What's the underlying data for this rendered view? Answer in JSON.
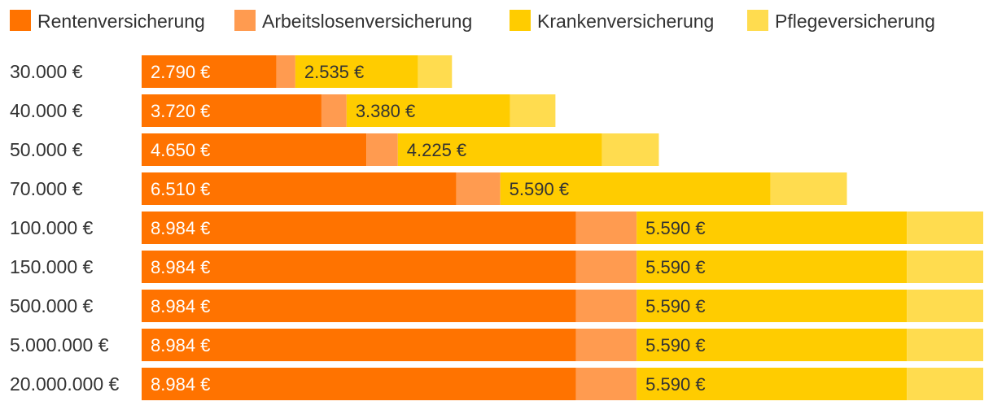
{
  "chart_data": {
    "type": "bar",
    "orientation": "horizontal",
    "stacked": true,
    "categories": [
      "30.000 €",
      "40.000 €",
      "50.000 €",
      "70.000 €",
      "100.000 €",
      "150.000 €",
      "500.000 €",
      "5.000.000 €",
      "20.000.000 €"
    ],
    "series": [
      {
        "name": "Rentenversicherung",
        "color": "#FF7300",
        "values": [
          2790,
          3720,
          4650,
          6510,
          8984,
          8984,
          8984,
          8984,
          8984
        ],
        "labels": [
          "2.790 €",
          "3.720 €",
          "4.650 €",
          "6.510 €",
          "8.984 €",
          "8.984 €",
          "8.984 €",
          "8.984 €",
          "8.984 €"
        ],
        "label_color": "#ffffff"
      },
      {
        "name": "Arbeitslosenversicherung",
        "color": "#FF9B50",
        "values": [
          390,
          520,
          650,
          910,
          1256,
          1256,
          1256,
          1256,
          1256
        ]
      },
      {
        "name": "Krankenversicherung",
        "color": "#FFCC00",
        "values": [
          2535,
          3380,
          4225,
          5590,
          5590,
          5590,
          5590,
          5590,
          5590
        ],
        "labels": [
          "2.535 €",
          "3.380 €",
          "4.225 €",
          "5.590 €",
          "5.590 €",
          "5.590 €",
          "5.590 €",
          "5.590 €",
          "5.590 €"
        ],
        "label_color": "#333333"
      },
      {
        "name": "Pflegeversicherung",
        "color": "#FFDC4F",
        "values": [
          705,
          940,
          1175,
          1580,
          1580,
          1580,
          1580,
          1580,
          1580
        ]
      }
    ],
    "xlim": [
      0,
      17410
    ],
    "legend_position": "top",
    "grid": false
  }
}
